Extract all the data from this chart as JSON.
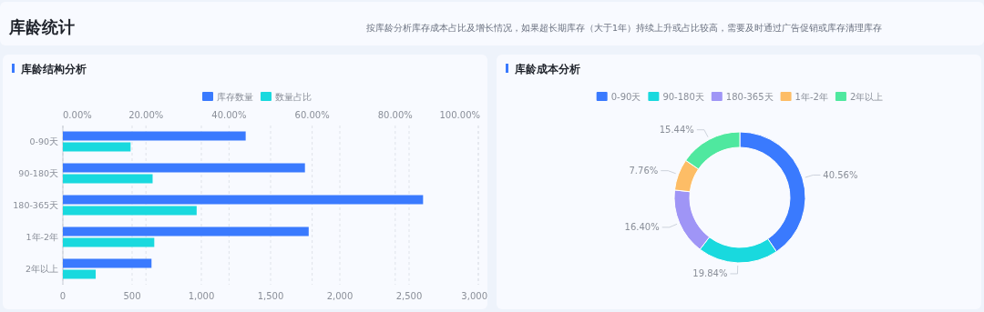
{
  "chart_data": [
    {
      "type": "other",
      "title": "库龄统计",
      "annotations": [
        "按库龄分析库存成本占比及增长情况，如果超长期库存（大于1年）持续上升或占比较高，需要及时通过广告促销或库存清理库存"
      ]
    },
    {
      "type": "bar",
      "title": "库龄结构分析",
      "orientation": "horizontal",
      "categories": [
        "0-90天",
        "90-180天",
        "180-365天",
        "1年-2年",
        "2年以上"
      ],
      "series": [
        {
          "name": "库存数量",
          "color": "#3a7afe",
          "values": [
            1320,
            1748,
            2601,
            1775,
            640
          ]
        },
        {
          "name": "数量占比",
          "color": "#19d9de",
          "axis": "x2",
          "values": [
            16.3,
            21.6,
            32.2,
            22.0,
            7.9
          ]
        }
      ],
      "xlim": [
        0,
        3000
      ],
      "xticks": [
        0,
        500,
        {
          "value": 1000,
          "label": "1,000"
        },
        {
          "value": 1500,
          "label": "1,500"
        },
        {
          "value": 2000,
          "label": "2,000"
        },
        {
          "value": 2500,
          "label": "2,500"
        },
        {
          "value": 3000,
          "label": "3,000"
        }
      ],
      "x2lim": [
        0,
        100
      ],
      "x2ticks": [
        {
          "value": 0,
          "label": "0.00%"
        },
        {
          "value": 20,
          "label": "20.00%"
        },
        {
          "value": 40,
          "label": "40.00%"
        },
        {
          "value": 60,
          "label": "60.00%"
        },
        {
          "value": 80,
          "label": "80.00%"
        },
        {
          "value": 100,
          "label": "100.00%"
        }
      ],
      "grid": "x",
      "legend": "top"
    },
    {
      "type": "donut",
      "title": "库龄成本分析",
      "categories": [
        "0-90天",
        "90-180天",
        "180-365天",
        "1年-2年",
        "2年以上"
      ],
      "values": [
        40.56,
        19.84,
        16.4,
        7.76,
        15.44
      ],
      "colors": [
        "#3a7afe",
        "#19d9de",
        "#9f95f6",
        "#fdbd66",
        "#4fe89f"
      ],
      "value_labels": [
        "40.56%",
        "19.84%",
        "16.40%",
        "7.76%",
        "15.44%"
      ],
      "legend": "top"
    }
  ]
}
